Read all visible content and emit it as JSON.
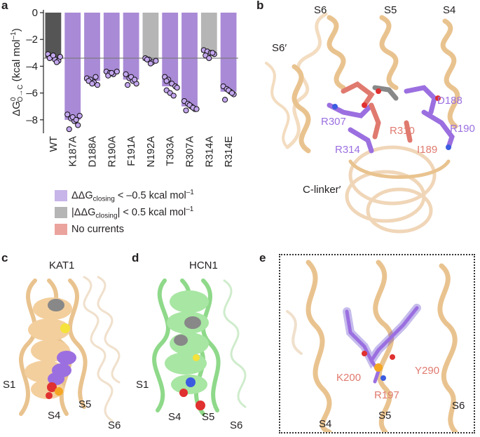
{
  "panels": {
    "a": {
      "letter": "a",
      "chart_data": {
        "type": "bar",
        "categories": [
          "WT",
          "K187A",
          "D188A",
          "R190A",
          "F191A",
          "N192A",
          "T303A",
          "R307A",
          "R314A",
          "R314E"
        ],
        "values": [
          -3.4,
          -8.0,
          -5.1,
          -4.5,
          -5.0,
          -3.6,
          -5.5,
          -7.0,
          -3.0,
          -5.9
        ],
        "bar_colors": [
          "#555555",
          "#a98ad6",
          "#a98ad6",
          "#a98ad6",
          "#a98ad6",
          "#b5b5b5",
          "#a98ad6",
          "#a98ad6",
          "#b5b5b5",
          "#a98ad6"
        ],
        "points": [
          [
            -3.1,
            -3.3,
            -3.5,
            -3.6,
            -3.4,
            -3.2,
            -3.7,
            -3.3
          ],
          [
            -7.6,
            -7.9,
            -8.1,
            -8.4,
            -8.7,
            -7.8,
            -8.0,
            -7.7
          ],
          [
            -4.9,
            -5.0,
            -5.2,
            -5.4,
            -5.1,
            -5.3,
            -4.8
          ],
          [
            -4.4,
            -4.5,
            -4.6,
            -4.4,
            -4.7,
            -4.5
          ],
          [
            -4.6,
            -4.9,
            -5.1,
            -5.3,
            -5.4,
            -4.8,
            -5.0
          ],
          [
            -3.4,
            -3.5,
            -3.7,
            -3.6,
            -3.5,
            -3.8
          ],
          [
            -4.8,
            -5.0,
            -5.3,
            -5.5,
            -5.8,
            -6.0,
            -6.2,
            -5.6,
            -5.1
          ],
          [
            -6.6,
            -6.8,
            -7.0,
            -7.2,
            -7.3,
            -6.9,
            -7.1,
            -7.2
          ],
          [
            -2.8,
            -2.9,
            -3.0,
            -3.1,
            -3.2,
            -3.4,
            -3.0
          ],
          [
            -5.5,
            -5.7,
            -5.9,
            -6.1,
            -6.5,
            -5.8,
            -6.0
          ]
        ],
        "reference_line": -3.4,
        "yticks": [
          0,
          -2,
          -4,
          -6,
          -8
        ],
        "ylim": [
          -8.9,
          0
        ],
        "ylabel_main": "ΔG",
        "ylabel_sup": "0",
        "ylabel_sub": "O→C",
        "ylabel_unit": " (kcal mol",
        "ylabel_unit_sup": "–1",
        "ylabel_close": ")"
      },
      "legend": [
        {
          "color": "#c7b4e8",
          "text_pre": "ΔΔG",
          "text_sub": "closing",
          "text_post": " < –0.5 kcal mol",
          "text_sup": "–1"
        },
        {
          "color": "#b5b5b5",
          "text_pre": "|ΔΔG",
          "text_sub": "closing",
          "text_post": "| < 0.5 kcal mol",
          "text_sup": "–1"
        },
        {
          "color": "#eba39e",
          "text_pre": "No currents",
          "text_sub": "",
          "text_post": "",
          "text_sup": ""
        }
      ]
    },
    "b": {
      "letter": "b",
      "labels": {
        "s6": "S6",
        "s5": "S5",
        "s4": "S4",
        "s6p": "S6′",
        "d188": "D188",
        "r307": "R307",
        "r310": "R310",
        "r190": "R190",
        "r314": "R314",
        "i189": "I189",
        "clinker": "C-linker′"
      },
      "colors": {
        "helix": "#e9c38f",
        "purple": "#9b6fe0",
        "salmon": "#e07a6f",
        "red": "#e03030"
      }
    },
    "c": {
      "letter": "c",
      "title": "KAT1",
      "s1": "S1",
      "s4": "S4",
      "s5": "S5",
      "s6": "S6"
    },
    "d": {
      "letter": "d",
      "title": "HCN1",
      "s1": "S1",
      "s4": "S4",
      "s5": "S5",
      "s6": "S6"
    },
    "e": {
      "letter": "e",
      "k200": "K200",
      "y290": "Y290",
      "r197": "R197",
      "s4": "S4",
      "s5": "S5",
      "s6": "S6"
    }
  }
}
